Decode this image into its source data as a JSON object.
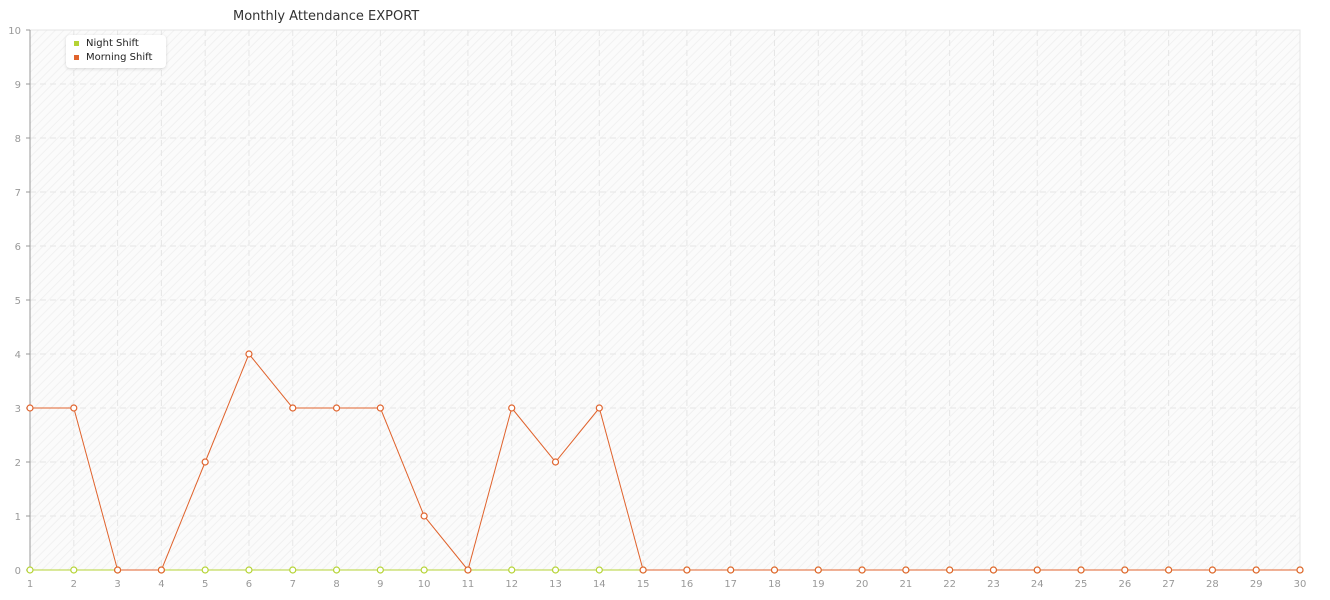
{
  "chart_data": {
    "type": "line",
    "title": "Monthly Attendance EXPORT",
    "x": [
      1,
      2,
      3,
      4,
      5,
      6,
      7,
      8,
      9,
      10,
      11,
      12,
      13,
      14,
      15,
      16,
      17,
      18,
      19,
      20,
      21,
      22,
      23,
      24,
      25,
      26,
      27,
      28,
      29,
      30
    ],
    "xlim": [
      1,
      30
    ],
    "ylim": [
      0,
      10
    ],
    "yticks": [
      0,
      1,
      2,
      3,
      4,
      5,
      6,
      7,
      8,
      9,
      10
    ],
    "grid": true,
    "legend": "top-left",
    "series": [
      {
        "name": "Night Shift",
        "color": "#b5d334",
        "values": [
          0,
          0,
          0,
          0,
          0,
          0,
          0,
          0,
          0,
          0,
          0,
          0,
          0,
          0,
          0,
          0,
          0,
          0,
          0,
          0,
          0,
          0,
          0,
          0,
          0,
          0,
          0,
          0,
          0,
          0
        ]
      },
      {
        "name": "Morning Shift",
        "color": "#e0632d",
        "values": [
          3,
          3,
          0,
          0,
          2,
          4,
          3,
          3,
          3,
          1,
          0,
          3,
          2,
          3,
          0,
          0,
          0,
          0,
          0,
          0,
          0,
          0,
          0,
          0,
          0,
          0,
          0,
          0,
          0,
          0
        ]
      }
    ]
  }
}
